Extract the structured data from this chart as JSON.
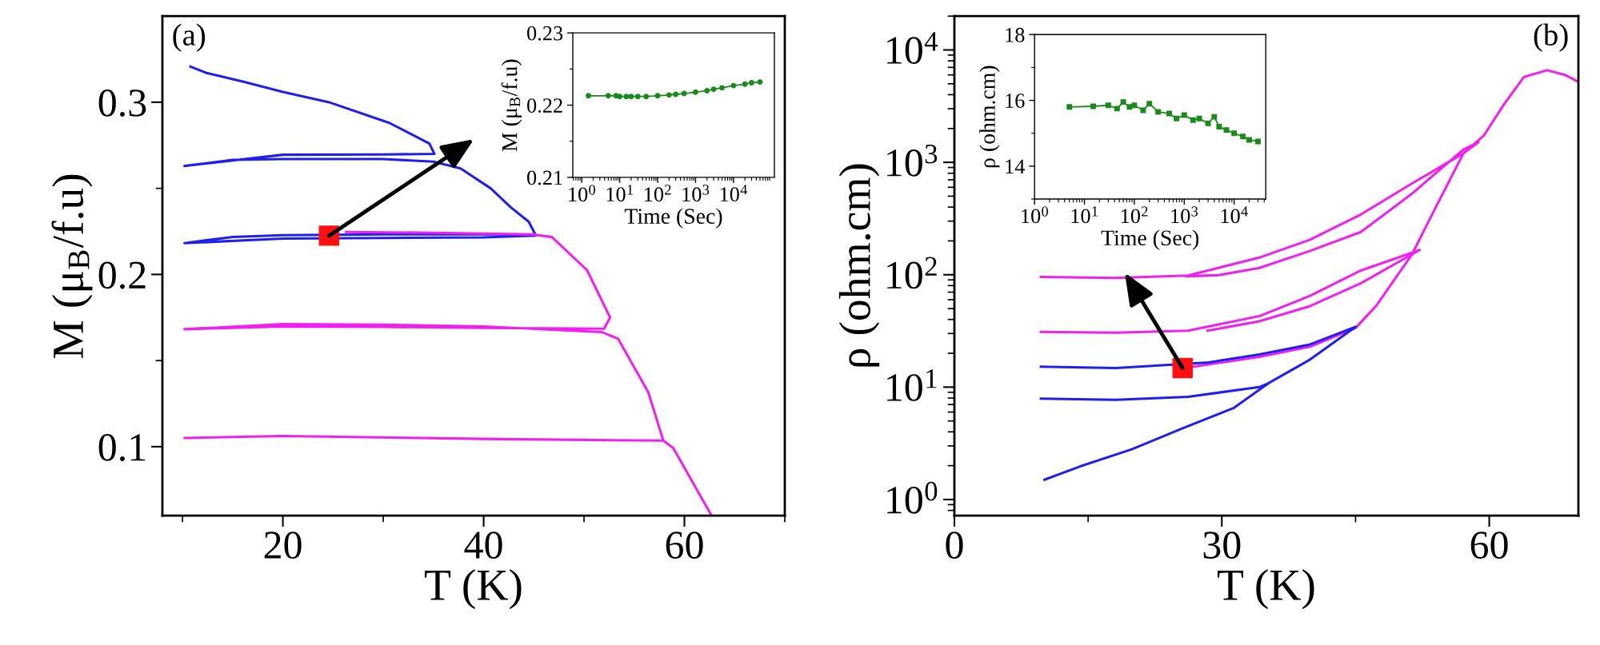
{
  "chart_data": [
    {
      "type": "line",
      "xlabel": "T (K)",
      "ylabel": "M (μ$_{B}$/f.u)",
      "annotations": [
        "(a)"
      ],
      "xlim": [
        8,
        70
      ],
      "ylim": [
        0.06,
        0.35
      ],
      "xticks": [
        {
          "value": 10,
          "label": null
        },
        20,
        {
          "value": 30,
          "label": null
        },
        40,
        {
          "value": 50,
          "label": null
        },
        60,
        {
          "value": 70,
          "label": null
        }
      ],
      "yticks": [
        0.1,
        {
          "value": 0.15,
          "label": null
        },
        0.2,
        {
          "value": 0.25,
          "label": null
        },
        0.3
      ],
      "grid": false,
      "legend": false,
      "marker": "none",
      "series": [
        {
          "color": "#1f1ff0",
          "x": [
            10.8,
            12.4,
            16,
            20,
            24.6,
            30.6,
            34.6,
            35.1,
            30,
            20,
            10.2,
            15,
            20,
            30,
            35,
            37.7,
            40.7,
            42.7,
            44.5,
            45.2,
            40,
            30,
            20,
            10.2,
            15,
            20,
            30,
            40,
            45
          ],
          "values": [
            0.3207,
            0.317,
            0.312,
            0.306,
            0.3,
            0.288,
            0.276,
            0.27,
            0.2697,
            0.2695,
            0.263,
            0.2665,
            0.267,
            0.267,
            0.2655,
            0.2616,
            0.25,
            0.239,
            0.2306,
            0.2226,
            0.2215,
            0.2212,
            0.2208,
            0.2182,
            0.2218,
            0.2228,
            0.2233,
            0.2234,
            0.2228
          ]
        },
        {
          "color": "#f020f0",
          "x": [
            26.3,
            35,
            45,
            46.8,
            50.3,
            52.6,
            52.0,
            40,
            30,
            20,
            10.2,
            20,
            30,
            40,
            51.8,
            53.4,
            56.4,
            57.9,
            40,
            20,
            10.2,
            20,
            40,
            57.9,
            58.9,
            62.7
          ],
          "values": [
            0.2247,
            0.2242,
            0.2232,
            0.2217,
            0.2025,
            0.175,
            0.1685,
            0.169,
            0.1695,
            0.1698,
            0.1682,
            0.1712,
            0.1708,
            0.1698,
            0.1665,
            0.1626,
            0.1316,
            0.1035,
            0.1045,
            0.1062,
            0.105,
            0.1062,
            0.1045,
            0.1035,
            0.0991,
            0.06
          ]
        },
        {
          "type": "scatter",
          "marker": "square",
          "color": "#ff1010",
          "x": [
            24.6
          ],
          "values": [
            0.2225
          ]
        }
      ]
    },
    {
      "type": "line",
      "xlabel": "Time (Sec)",
      "ylabel": "M (μ$_{B}$/f.u)",
      "log": "x",
      "marker": "circle",
      "xlim": [
        0.58,
        120000
      ],
      "ylim": [
        0.21,
        0.23
      ],
      "xticks": [
        {
          "value": 1,
          "label": "10$^{0}$"
        },
        {
          "value": 10,
          "label": "10$^{1}$"
        },
        {
          "value": 100,
          "label": "10$^{2}$"
        },
        {
          "value": 1000,
          "label": "10$^{3}$"
        },
        {
          "value": 10000,
          "label": "10$^{4}$"
        }
      ],
      "yticks": [
        0.21,
        {
          "value": 0.215,
          "label": null
        },
        0.22,
        {
          "value": 0.225,
          "label": null
        },
        0.23
      ],
      "grid": false,
      "legend": false,
      "series": [
        {
          "color": "#1a8a1a",
          "x": [
            1.5,
            5,
            8,
            10,
            15,
            20,
            30,
            50,
            100,
            200,
            300,
            500,
            1000,
            2000,
            3000,
            5000,
            10000,
            20000,
            30000,
            50000
          ],
          "values": [
            0.2213,
            0.2213,
            0.2213,
            0.2212,
            0.2212,
            0.2212,
            0.2212,
            0.2212,
            0.2213,
            0.2214,
            0.2215,
            0.2216,
            0.2218,
            0.222,
            0.2222,
            0.2224,
            0.2227,
            0.2229,
            0.2231,
            0.2232
          ]
        }
      ]
    },
    {
      "type": "line",
      "xlabel": "T (K)",
      "ylabel": "ρ (ohm.cm)",
      "annotations": [
        "(b)"
      ],
      "log": "y",
      "xlim": [
        0,
        70
      ],
      "ylim": [
        0.72,
        20000
      ],
      "xticks": [
        0,
        {
          "value": 15,
          "label": null
        },
        30,
        {
          "value": 45,
          "label": null
        },
        60
      ],
      "yticks": [
        {
          "value": 1,
          "label": "10$^{0}$"
        },
        {
          "value": 10,
          "label": "10$^{1}$"
        },
        {
          "value": 100,
          "label": "10$^{2}$"
        },
        {
          "value": 1000,
          "label": "10$^{3}$"
        },
        {
          "value": 10000,
          "label": "10$^{4}$"
        }
      ],
      "grid": false,
      "legend": false,
      "marker": "none",
      "series": [
        {
          "color": "#f020f0",
          "x": [
            9.7,
            18.1,
            26.2,
            34.2,
            39.9,
            45.6,
            51.3,
            57.1,
            58.8,
            57.1,
            51.3,
            45.6,
            39.9,
            34.2,
            29.6,
            26
          ],
          "values": [
            95.5,
            93.6,
            98.5,
            142,
            205,
            344,
            646,
            1203,
            1514,
            1300,
            524,
            240,
            163,
            115,
            99,
            97
          ]
        },
        {
          "color": "#f020f0",
          "x": [
            9.7,
            18.1,
            26.2,
            34.2,
            39.9,
            45.6,
            52.2,
            45.6,
            39.9,
            34.2,
            28.4
          ],
          "values": [
            31,
            30.5,
            31.8,
            42.8,
            65,
            109,
            166,
            84,
            52.6,
            38.5,
            31.8
          ]
        },
        {
          "color": "#f020f0",
          "x": [
            26.8,
            34.2,
            39.9,
            45.0,
            47.3,
            51.3,
            53.6,
            57.1,
            59.4,
            61.6,
            63.9,
            66.5,
            68.5,
            70
          ],
          "values": [
            15.2,
            18.6,
            22.9,
            33.6,
            52.7,
            150,
            345,
            1203,
            1733,
            3240,
            5760,
            6600,
            6000,
            5190
          ]
        },
        {
          "color": "#1f1ff0",
          "x": [
            10.1,
            14.1,
            19.9,
            25.6,
            31.3,
            35.2,
            39.9,
            45,
            39.9,
            34.2,
            28.5,
            18.1,
            9.7
          ],
          "values": [
            1.5,
            1.97,
            2.8,
            4.3,
            6.5,
            10.8,
            17.6,
            34.4,
            24,
            19.5,
            16.6,
            14.8,
            15.2
          ]
        },
        {
          "color": "#1f1ff0",
          "x": [
            9.7,
            18.1,
            26.2,
            34.2,
            35.2
          ],
          "values": [
            7.9,
            7.7,
            8.2,
            10,
            10.8
          ]
        },
        {
          "type": "scatter",
          "marker": "square",
          "color": "#ff1010",
          "x": [
            25.6
          ],
          "values": [
            14.8
          ]
        }
      ]
    },
    {
      "type": "line",
      "xlabel": "Time (Sec)",
      "ylabel": "ρ (ohm.cm)",
      "log": "x",
      "marker": "square",
      "xlim": [
        1,
        43000
      ],
      "ylim": [
        13,
        18
      ],
      "xticks": [
        {
          "value": 1,
          "label": "10$^{0}$"
        },
        {
          "value": 10,
          "label": "10$^{1}$"
        },
        {
          "value": 100,
          "label": "10$^{2}$"
        },
        {
          "value": 1000,
          "label": "10$^{3}$"
        },
        {
          "value": 10000,
          "label": "10$^{4}$"
        }
      ],
      "yticks": [
        {
          "value": 13,
          "label": null
        },
        14,
        {
          "value": 15,
          "label": null
        },
        16,
        {
          "value": 17,
          "label": null
        },
        18
      ],
      "grid": false,
      "legend": false,
      "series": [
        {
          "color": "#1a8a1a",
          "x": [
            5,
            15,
            30,
            45,
            60,
            80,
            100,
            150,
            200,
            300,
            500,
            700,
            1000,
            1500,
            2000,
            3000,
            4000,
            5000,
            7000,
            10000,
            15000,
            20000,
            30000
          ],
          "values": [
            15.8,
            15.82,
            15.85,
            15.75,
            15.95,
            15.8,
            15.85,
            15.7,
            15.9,
            15.65,
            15.6,
            15.45,
            15.55,
            15.4,
            15.45,
            15.3,
            15.5,
            15.2,
            15.1,
            15.0,
            14.9,
            14.8,
            14.75
          ]
        }
      ]
    }
  ]
}
